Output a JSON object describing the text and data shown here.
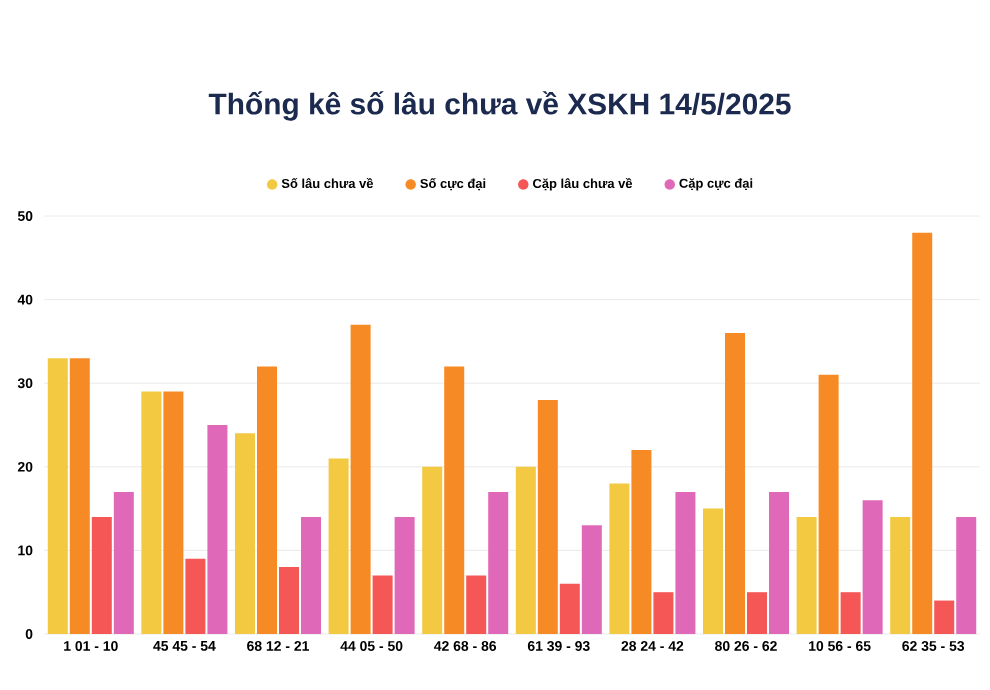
{
  "chart_data": {
    "type": "bar",
    "title": "Thống kê số lâu chưa về XSKH 14/5/2025",
    "categories": [
      "1 01 - 10",
      "45 45 - 54",
      "68 12 - 21",
      "44 05 - 50",
      "42 68 - 86",
      "61 39 - 93",
      "28 24 - 42",
      "80 26 - 62",
      "10 56 - 65",
      "62 35 - 53"
    ],
    "series": [
      {
        "name": "Số lâu chưa về",
        "color": "#f2c940",
        "values": [
          33,
          29,
          24,
          21,
          20,
          20,
          18,
          15,
          14,
          14
        ]
      },
      {
        "name": "Số cực đại",
        "color": "#f68b25",
        "values": [
          33,
          29,
          32,
          37,
          32,
          28,
          22,
          36,
          31,
          48
        ]
      },
      {
        "name": "Cặp lâu chưa về",
        "color": "#f55656",
        "values": [
          14,
          9,
          8,
          7,
          7,
          6,
          5,
          5,
          5,
          4
        ]
      },
      {
        "name": "Cặp cực đại",
        "color": "#e068b8",
        "values": [
          17,
          25,
          14,
          14,
          17,
          13,
          17,
          17,
          16,
          14
        ]
      }
    ],
    "ylim": [
      0,
      50
    ],
    "yticks": [
      0,
      10,
      20,
      30,
      40,
      50
    ],
    "grid": "y",
    "legend": "top"
  }
}
